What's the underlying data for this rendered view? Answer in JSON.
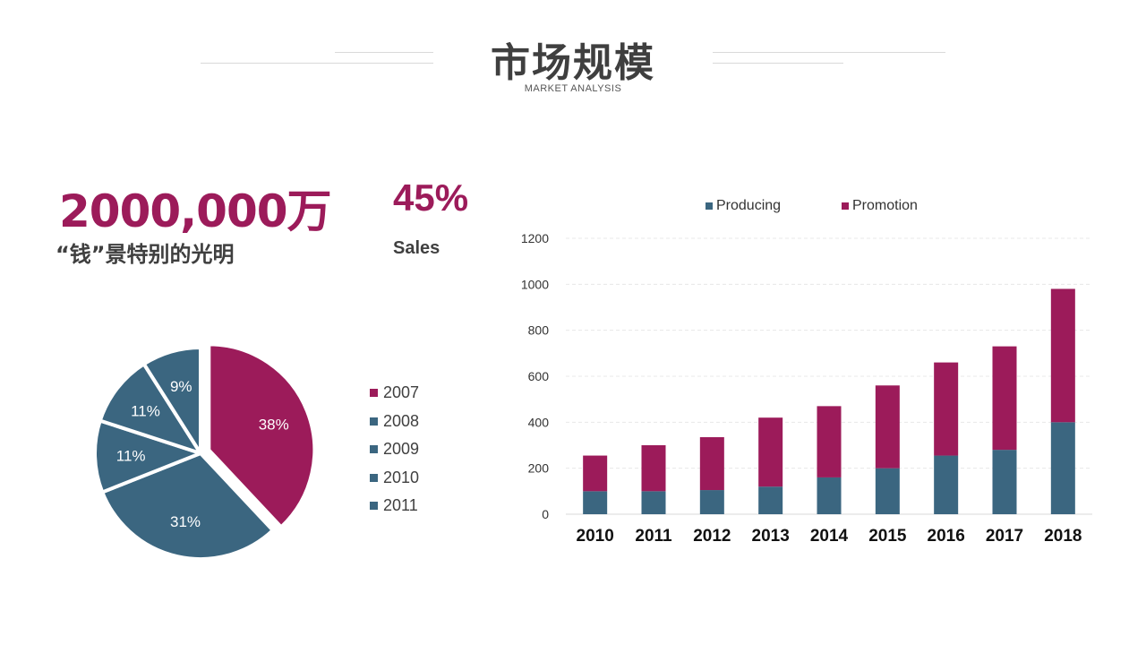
{
  "header": {
    "title": "市场规模",
    "subtitle": "MARKET ANALYSIS"
  },
  "stats": {
    "big_number": "2000,000万",
    "big_caption": "“钱”景特别的光明",
    "percent": "45%",
    "percent_caption": "Sales"
  },
  "colors": {
    "accent": "#9c1b5a",
    "primary": "#3b6680",
    "text": "#3f3f3f",
    "grid": "#e6e6e6"
  },
  "chart_data": [
    {
      "type": "pie",
      "slices": [
        {
          "label": "38%",
          "value": 38,
          "color": "#9c1b5a",
          "exploded": true
        },
        {
          "label": "31%",
          "value": 31,
          "color": "#3b6680",
          "exploded": false
        },
        {
          "label": "11%",
          "value": 11,
          "color": "#3b6680",
          "exploded": false
        },
        {
          "label": "11%",
          "value": 11,
          "color": "#3b6680",
          "exploded": false
        },
        {
          "label": "9%",
          "value": 9,
          "color": "#3b6680",
          "exploded": false
        }
      ],
      "legend": [
        {
          "name": "2007",
          "color": "#9c1b5a"
        },
        {
          "name": "2008",
          "color": "#3b6680"
        },
        {
          "name": "2009",
          "color": "#3b6680"
        },
        {
          "name": "2010",
          "color": "#3b6680"
        },
        {
          "name": "2011",
          "color": "#3b6680"
        }
      ]
    },
    {
      "type": "bar",
      "stacked": true,
      "categories": [
        "2010",
        "2011",
        "2012",
        "2013",
        "2014",
        "2015",
        "2016",
        "2017",
        "2018"
      ],
      "series": [
        {
          "name": "Producing",
          "color": "#3b6680",
          "values": [
            100,
            100,
            105,
            120,
            160,
            200,
            255,
            280,
            400
          ]
        },
        {
          "name": "Promotion",
          "color": "#9c1b5a",
          "values": [
            155,
            200,
            230,
            300,
            310,
            360,
            405,
            450,
            580
          ]
        }
      ],
      "ylim": [
        0,
        1200
      ],
      "yticks": [
        0,
        200,
        400,
        600,
        800,
        1000,
        1200
      ],
      "grid": true,
      "legend_position": "top"
    }
  ]
}
